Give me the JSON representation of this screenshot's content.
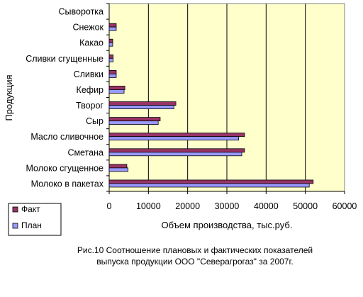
{
  "chart_data": {
    "type": "bar",
    "orientation": "horizontal",
    "categories": [
      "Молоко в пакетах",
      "Молоко сгущенное",
      "Сметана",
      "Масло сливочное",
      "Сыр",
      "Творог",
      "Кефир",
      "Сливки",
      "Сливки сгущенные",
      "Какао",
      "Снежок",
      "Сыворотка"
    ],
    "series": [
      {
        "name": "Факт",
        "color": "#993366",
        "values": [
          52000,
          4500,
          34500,
          34500,
          13000,
          17000,
          4000,
          1800,
          1000,
          900,
          1800,
          0
        ]
      },
      {
        "name": "План",
        "color": "#9999ff",
        "values": [
          51000,
          4800,
          33800,
          33000,
          12500,
          16500,
          3800,
          1800,
          1000,
          900,
          1800,
          0
        ]
      }
    ],
    "xlabel": "Объем производства, тыс.руб.",
    "ylabel": "Продукция",
    "xlim": [
      0,
      60000
    ],
    "xticks": [
      "0",
      "10000",
      "20000",
      "30000",
      "40000",
      "50000",
      "60000"
    ],
    "grid": true,
    "plot_background": "#ffffcc",
    "legend_placement": "bottom-left"
  },
  "caption": {
    "line1": "Рис.10 Соотношение плановых и фактических показателей",
    "line2": "выпуска продукции ООО \"Северагрогаз\" за 2007г."
  }
}
